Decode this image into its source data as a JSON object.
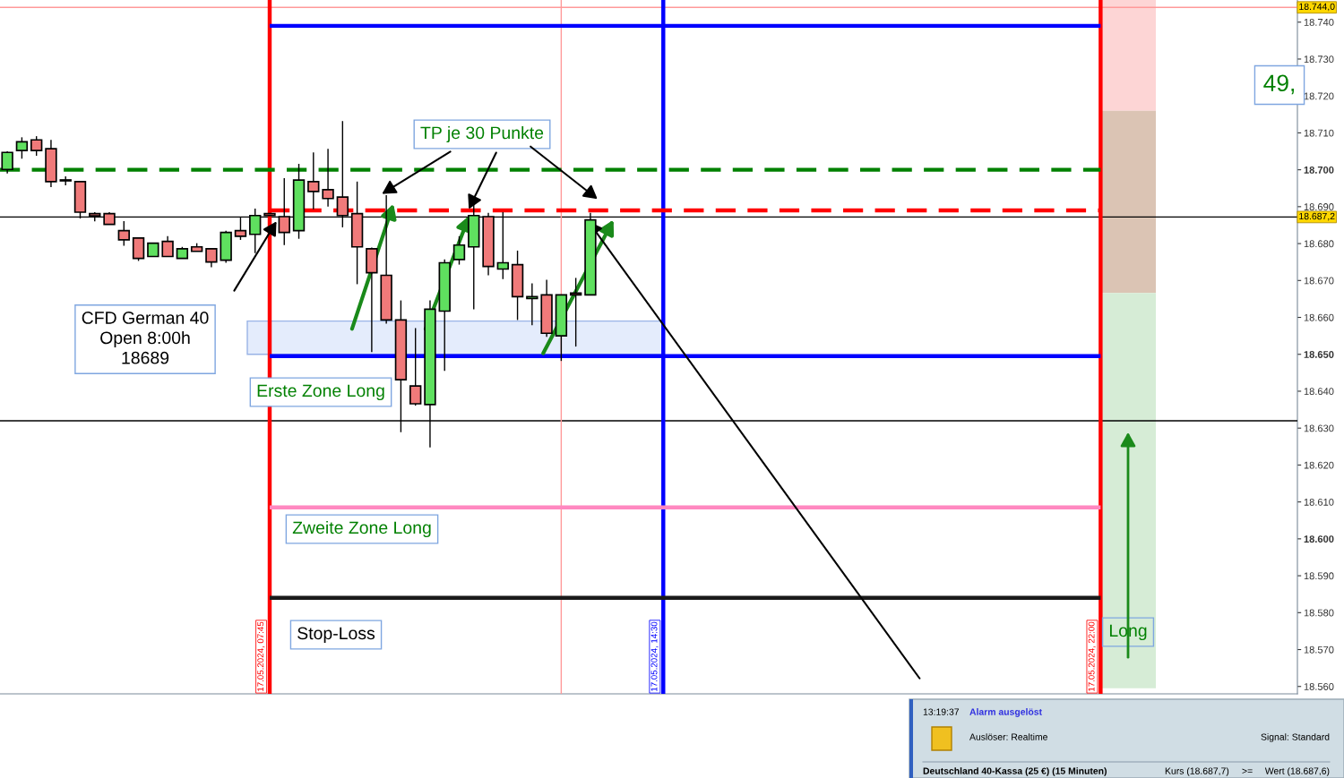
{
  "chart_data": {
    "type": "candlestick",
    "categories": [
      null,
      null,
      null,
      null,
      null,
      null,
      null,
      null,
      null,
      null,
      null,
      null,
      null,
      null,
      null,
      null,
      null,
      null,
      null,
      null,
      null,
      null,
      null,
      null,
      null,
      null,
      null,
      null,
      null,
      null,
      null,
      null,
      null,
      null,
      null,
      null,
      null,
      null,
      null,
      null,
      null,
      null,
      null,
      null,
      null,
      null,
      null,
      null,
      null,
      null,
      null,
      null,
      null,
      null,
      null,
      null,
      null,
      null,
      null,
      null,
      null,
      null,
      null,
      null,
      null,
      null,
      null,
      null,
      null,
      null,
      null,
      null,
      null,
      null,
      null,
      null,
      null,
      null,
      null,
      null,
      null,
      null,
      null,
      null,
      null,
      null,
      null,
      null,
      null
    ],
    "ohlc": [
      [
        18700.1,
        18705,
        18699,
        18704.7
      ],
      [
        18705.2,
        18708.8,
        18703.0,
        18707.6
      ],
      [
        18708.1,
        18709.1,
        18703.8,
        18705.2
      ],
      [
        18705.7,
        18708.1,
        18695.3,
        18696.8
      ],
      [
        18697.1,
        18698.2,
        18695.8,
        18697.0
      ],
      [
        18696.8,
        18696.8,
        18686.8,
        18688.5
      ],
      [
        18688.1,
        18688.5,
        18686.0,
        18687.5
      ],
      [
        18688.1,
        18688.5,
        18685.2,
        18685.2
      ],
      [
        18683.5,
        18686.1,
        18679.4,
        18681.0
      ],
      [
        18681.5,
        18681.5,
        18675.3,
        18676.0
      ],
      [
        18676.5,
        18680.1,
        18676.5,
        18680.1
      ],
      [
        18680.6,
        18682.0,
        18676.5,
        18676.5
      ],
      [
        18676.0,
        18679.1,
        18676.0,
        18678.6
      ],
      [
        18679.1,
        18680.1,
        18677.9,
        18677.9
      ],
      [
        18678.6,
        18678.6,
        18673.6,
        18675.0
      ],
      [
        18675.5,
        18683.5,
        18674.8,
        18683.0
      ],
      [
        18683.5,
        18687.1,
        18681.0,
        18682.0
      ],
      [
        18682.5,
        18689.5,
        18677.4,
        18687.6
      ],
      [
        18688.1,
        18688.1,
        18687.6,
        18687.6
      ],
      [
        18687.3,
        18697.7,
        18679.6,
        18683.0
      ],
      [
        18683.5,
        18701.6,
        18681.3,
        18697.2
      ],
      [
        18696.8,
        18704.7,
        18689.3,
        18694.1
      ],
      [
        18694.6,
        18705.7,
        18690.0,
        18692.2
      ],
      [
        18692.6,
        18713.2,
        18684.4,
        18687.6
      ],
      [
        18688.1,
        18696.8,
        18669.0,
        18679.1
      ],
      [
        18678.6,
        18678.9,
        18650.6,
        18672.1
      ],
      [
        18671.4,
        18693.1,
        18658.3,
        18659.3
      ],
      [
        18659.3,
        18664.6,
        18628.9,
        18643.1
      ],
      [
        18641.4,
        18657.1,
        18636.1,
        18636.6
      ],
      [
        18636.4,
        18664.6,
        18624.8,
        18662.2
      ],
      [
        18661.7,
        18675.7,
        18645.5,
        18674.8
      ],
      [
        18675.7,
        18682.0,
        18674.3,
        18679.6
      ],
      [
        18679.1,
        18690.7,
        18662.2,
        18687.6
      ],
      [
        18687.3,
        18688.3,
        18671.4,
        18673.8
      ],
      [
        18673.1,
        18688.5,
        18670.4,
        18674.8
      ],
      [
        18674.3,
        18678.1,
        18659.3,
        18665.6
      ],
      [
        18665.1,
        18669.2,
        18657.9,
        18665.6
      ],
      [
        18666.1,
        18670.2,
        18654.7,
        18655.7
      ],
      [
        18655.0,
        18666.1,
        18648.2,
        18666.1
      ],
      [
        18666.6,
        18670.7,
        18652.1,
        18666.1
      ],
      [
        18666.1,
        18688.3,
        18666.1,
        18686.4
      ],
      null,
      null,
      null,
      null,
      null,
      null,
      null,
      null,
      null,
      null,
      null,
      null,
      null,
      null,
      null,
      null,
      null,
      null,
      null,
      null,
      null,
      null,
      null,
      null,
      null,
      null,
      null,
      null,
      null,
      null,
      null,
      null,
      null,
      null,
      null,
      null,
      null,
      null,
      null,
      null,
      null,
      null,
      null,
      null,
      null,
      null,
      null,
      null
    ],
    "ylim": [
      18558,
      18746
    ],
    "yticks": [
      {
        "value": 18560,
        "label": "18.560"
      },
      {
        "value": 18570,
        "label": "18.570"
      },
      {
        "value": 18580,
        "label": "18.580"
      },
      {
        "value": 18590,
        "label": "18.590"
      },
      {
        "value": 18600,
        "label": "18.600"
      },
      {
        "value": 18610,
        "label": "18.610"
      },
      {
        "value": 18620,
        "label": "18.620"
      },
      {
        "value": 18630,
        "label": "18.630"
      },
      {
        "value": 18640,
        "label": "18.640"
      },
      {
        "value": 18650,
        "label": "18.650"
      },
      {
        "value": 18660,
        "label": "18.660"
      },
      {
        "value": 18670,
        "label": "18.670"
      },
      {
        "value": 18680,
        "label": "18.680"
      },
      {
        "value": 18690,
        "label": "18.690"
      },
      {
        "value": 18700,
        "label": "18.700"
      },
      {
        "value": 18710,
        "label": "18.710"
      },
      {
        "value": 18720,
        "label": "18.720"
      },
      {
        "value": 18730,
        "label": "18.730"
      },
      {
        "value": 18740,
        "label": "18.740"
      }
    ],
    "tick_labels": "y",
    "grid": false,
    "ref_lines": [
      {
        "axis": "y",
        "value": 18739,
        "color": "#0000ff",
        "line_style": "solid"
      },
      {
        "axis": "y",
        "value": 18700,
        "color": "#008000",
        "line_style": "dashed"
      },
      {
        "axis": "y",
        "value": 18689,
        "color": "#ff0000",
        "line_style": "dashed"
      },
      {
        "axis": "y",
        "value": 18649.5,
        "color": "#0000ff",
        "line_style": "solid"
      },
      {
        "axis": "y",
        "value": 18608.5,
        "color": "#ff88c0",
        "line_style": "solid"
      },
      {
        "axis": "y",
        "value": 18584,
        "color": "#1a1a1a",
        "line_style": "solid"
      },
      {
        "axis": "y",
        "value": 18687.2,
        "label": "18.687,2",
        "color": "#000000",
        "line_style": "solid"
      },
      {
        "axis": "y",
        "value": 18632,
        "color": "#000000",
        "line_style": "solid"
      },
      {
        "axis": "y",
        "value": 18744,
        "label": "18.744,0",
        "color": "#ff9999",
        "line_style": "solid"
      }
    ],
    "bands": [
      {
        "axis": "y",
        "from": 18650,
        "to": 18659,
        "color": "#e4ecfc"
      },
      {
        "axis": "y",
        "from": 18716,
        "to": 18746,
        "color": "#fdd5d5"
      },
      {
        "axis": "y",
        "from": 18666.6,
        "to": 18716,
        "color": "#dbc4b4"
      },
      {
        "axis": "y",
        "from": 18559.5,
        "to": 18666.6,
        "color": "#d6ecd6"
      }
    ],
    "annotations": [
      "CFD German 40\nOpen 8:00h\n18689",
      "TP je 30 Punkte",
      "Erste Zone Long",
      "Zweite Zone Long",
      "Stop-Loss",
      "Long",
      "49,",
      "17.05.2024, 07:45",
      "17.05.2024, 14:30",
      "17.05.2024, 22:00",
      "13:19:37",
      "Alarm ausgelöst",
      "Auslöser: Realtime",
      "Signal: Standard",
      "Deutschland 40-Kassa (25 €) (15 Minuten)",
      "Kurs (18.687,7)",
      ">=",
      "Wert (18.687,6)"
    ]
  }
}
